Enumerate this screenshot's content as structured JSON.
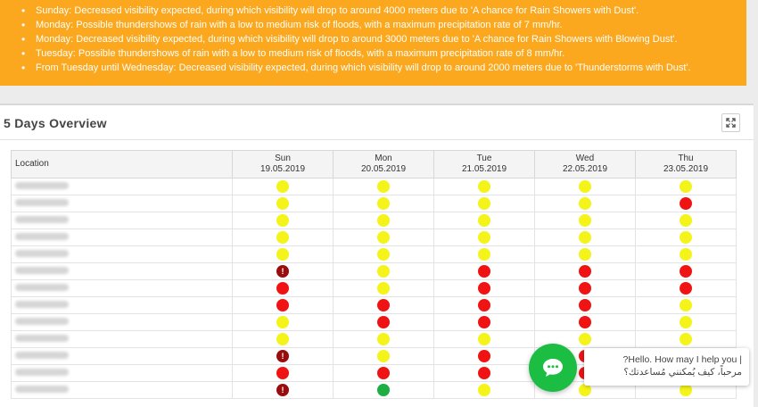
{
  "alerts": [
    "Sunday: Decreased visibility expected, during which visibility will drop to around 4000 meters due to 'A chance for Rain Showers with Dust'.",
    "Monday: Possible thundershows of rain with a low to medium risk of floods, with a maximum precipitation rate of 7 mm/hr.",
    "Monday: Decreased visibility expected, during which visibility will drop to around 3000 meters due to 'A chance for Rain Showers with Blowing Dust'.",
    "Tuesday: Possible thundershows of rain with a low to medium risk of floods, with a maximum precipitation rate of 8 mm/hr.",
    "From Tuesday until Wednesday: Decreased visibility expected, during which visibility will drop to around 2000 meters due to 'Thunderstorms with Dust'."
  ],
  "panel": {
    "title": "5 Days Overview",
    "expand_icon": "expand-icon"
  },
  "table": {
    "location_header": "Location",
    "days": [
      {
        "day": "Sun",
        "date": "19.05.2019"
      },
      {
        "day": "Mon",
        "date": "20.05.2019"
      },
      {
        "day": "Tue",
        "date": "21.05.2019"
      },
      {
        "day": "Wed",
        "date": "22.05.2019"
      },
      {
        "day": "Thu",
        "date": "23.05.2019"
      }
    ],
    "rows": [
      [
        "yellow",
        "yellow",
        "yellow",
        "yellow",
        "yellow"
      ],
      [
        "yellow",
        "yellow",
        "yellow",
        "yellow",
        "red"
      ],
      [
        "yellow",
        "yellow",
        "yellow",
        "yellow",
        "yellow"
      ],
      [
        "yellow",
        "yellow",
        "yellow",
        "yellow",
        "yellow"
      ],
      [
        "yellow",
        "yellow",
        "yellow",
        "yellow",
        "yellow"
      ],
      [
        "dark-red-warning",
        "yellow",
        "red",
        "red",
        "red"
      ],
      [
        "red",
        "yellow",
        "red",
        "red",
        "red"
      ],
      [
        "red",
        "red",
        "red",
        "red",
        "yellow"
      ],
      [
        "yellow",
        "red",
        "red",
        "red",
        "yellow"
      ],
      [
        "yellow",
        "yellow",
        "yellow",
        "yellow",
        "yellow"
      ],
      [
        "dark-red-warning",
        "yellow",
        "red",
        "red",
        "yellow"
      ],
      [
        "red",
        "red",
        "red",
        "red",
        "yellow"
      ],
      [
        "dark-red-warning",
        "green",
        "yellow",
        "yellow",
        "yellow"
      ]
    ]
  },
  "colors": {
    "yellow": "#f4f41a",
    "red": "#f01313",
    "green": "#1fae44",
    "dark-red-warning": "#980d0d",
    "alert_bg": "#fba81f"
  },
  "chat": {
    "icon": "chat-bubble-icon",
    "greeting_en": "?Hello. How may I help you |",
    "greeting_ar": "مرحباً، كيف يُمكنني مُساعدتك؟"
  }
}
